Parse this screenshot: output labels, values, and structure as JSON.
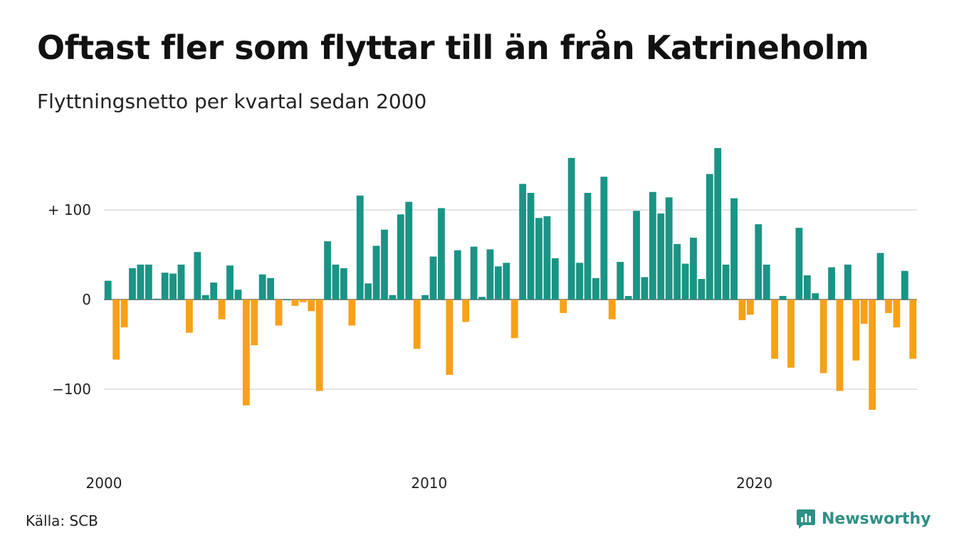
{
  "title": "Oftast fler som flyttar till än från Katrineholm",
  "subtitle": "Flyttningsnetto per kvartal sedan 2000",
  "source": "Källa: SCB",
  "brand": {
    "name": "Newsworthy",
    "color": "#2f8f85",
    "icon": "bar-chart-logo-icon"
  },
  "chart_data": {
    "type": "bar",
    "title": "Oftast fler som flyttar till än från Katrineholm",
    "subtitle": "Flyttningsnetto per kvartal sedan 2000",
    "ylim": [
      -165,
      175
    ],
    "grid": true,
    "positive_color": "#1a9485",
    "negative_color": "#f7a11a",
    "y_ticks": [
      {
        "value": 100,
        "label": "+ 100"
      },
      {
        "value": 0,
        "label": "0"
      },
      {
        "value": -100,
        "label": "−100"
      }
    ],
    "x_ticks": [
      {
        "index": 0,
        "label": "2000"
      },
      {
        "index": 40,
        "label": "2010"
      },
      {
        "index": 80,
        "label": "2020"
      }
    ],
    "categories": [
      "2000K1",
      "2000K2",
      "2000K3",
      "2000K4",
      "2001K1",
      "2001K2",
      "2001K3",
      "2001K4",
      "2002K1",
      "2002K2",
      "2002K3",
      "2002K4",
      "2003K1",
      "2003K2",
      "2003K3",
      "2003K4",
      "2004K1",
      "2004K2",
      "2004K3",
      "2004K4",
      "2005K1",
      "2005K2",
      "2005K3",
      "2005K4",
      "2006K1",
      "2006K2",
      "2006K3",
      "2006K4",
      "2007K1",
      "2007K2",
      "2007K3",
      "2007K4",
      "2008K1",
      "2008K2",
      "2008K3",
      "2008K4",
      "2009K1",
      "2009K2",
      "2009K3",
      "2009K4",
      "2010K1",
      "2010K2",
      "2010K3",
      "2010K4",
      "2011K1",
      "2011K2",
      "2011K3",
      "2011K4",
      "2012K1",
      "2012K2",
      "2012K3",
      "2012K4",
      "2013K1",
      "2013K2",
      "2013K3",
      "2013K4",
      "2014K1",
      "2014K2",
      "2014K3",
      "2014K4",
      "2015K1",
      "2015K2",
      "2015K3",
      "2015K4",
      "2016K1",
      "2016K2",
      "2016K3",
      "2016K4",
      "2017K1",
      "2017K2",
      "2017K3",
      "2017K4",
      "2018K1",
      "2018K2",
      "2018K3",
      "2018K4",
      "2019K1",
      "2019K2",
      "2019K3",
      "2019K4",
      "2020K1",
      "2020K2",
      "2020K3",
      "2020K4",
      "2021K1",
      "2021K2",
      "2021K3",
      "2021K4",
      "2022K1",
      "2022K2",
      "2022K3",
      "2022K4",
      "2023K1",
      "2023K2",
      "2023K3",
      "2023K4",
      "2024K1",
      "2024K2",
      "2024K3",
      "2024K4"
    ],
    "values": [
      21,
      -67,
      -31,
      35,
      39,
      39,
      1,
      30,
      29,
      39,
      -37,
      53,
      5,
      19,
      -22,
      38,
      11,
      -118,
      -51,
      28,
      24,
      -29,
      0,
      -7,
      -3,
      -13,
      -102,
      65,
      39,
      35,
      -29,
      116,
      18,
      60,
      78,
      5,
      95,
      109,
      -55,
      5,
      48,
      102,
      -84,
      55,
      -25,
      59,
      3,
      56,
      37,
      41,
      -43,
      129,
      119,
      91,
      93,
      46,
      -15,
      158,
      41,
      119,
      24,
      137,
      -22,
      42,
      4,
      99,
      25,
      120,
      96,
      114,
      62,
      40,
      69,
      23,
      140,
      169,
      39,
      113,
      -23,
      -17,
      84,
      39,
      -66,
      4,
      -76,
      80,
      27,
      7,
      -82,
      36,
      -102,
      39,
      -68,
      -27,
      -123,
      52,
      -15,
      -31,
      32,
      -66
    ]
  }
}
